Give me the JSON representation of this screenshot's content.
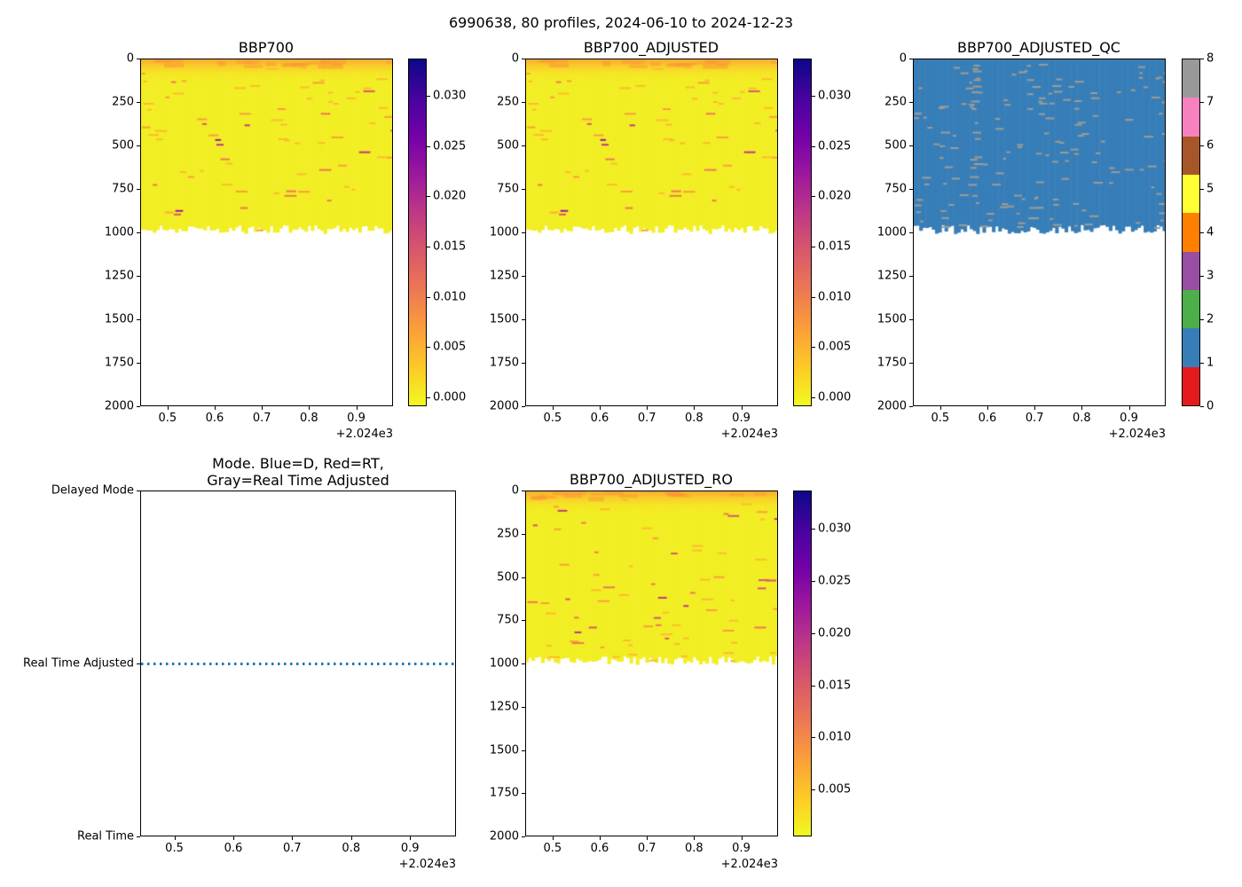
{
  "figure": {
    "title": "6990638, 80 profiles, 2024-06-10 to 2024-12-23",
    "background_color": "#ffffff"
  },
  "colors": {
    "heatmap_base": "#f2ee24",
    "surface_band": "#faa832",
    "qc_base": "#377eb8",
    "qc_fleck": "#9b9b96",
    "mode_line": "#1f77b4"
  },
  "chart_data": {
    "type": "multi-panel",
    "panels": [
      {
        "id": "bbp700",
        "type": "heatmap",
        "title": "BBP700",
        "x_ticks": [
          "0.5",
          "0.6",
          "0.7",
          "0.8",
          "0.9"
        ],
        "x_tick_values": [
          2024.5,
          2024.6,
          2024.7,
          2024.8,
          2024.9
        ],
        "x_offset": "+2.024e3",
        "x_range": [
          2024.442,
          2024.978
        ],
        "y_ticks": [
          "0",
          "250",
          "500",
          "750",
          "1000",
          "1250",
          "1500",
          "1750",
          "2000"
        ],
        "y_range": [
          0,
          2000
        ],
        "y_inverted": true,
        "n_profiles": 80,
        "data_depth_extent_m": [
          0,
          1000
        ],
        "typical_value": 0.0005,
        "surface_max_value": 0.004,
        "spike_max_value": 0.033,
        "colormap": "plasma_r",
        "colorbar": {
          "vmin": -0.0009,
          "vmax": 0.0337,
          "tick_values": [
            0,
            0.005,
            0.01,
            0.015,
            0.02,
            0.025,
            0.03
          ],
          "tick_labels": [
            "0.000",
            "0.005",
            "0.010",
            "0.015",
            "0.020",
            "0.025",
            "0.030"
          ]
        },
        "texture_seed": 11
      },
      {
        "id": "bbp700_adjusted",
        "type": "heatmap",
        "title": "BBP700_ADJUSTED",
        "x_ticks": [
          "0.5",
          "0.6",
          "0.7",
          "0.8",
          "0.9"
        ],
        "x_tick_values": [
          2024.5,
          2024.6,
          2024.7,
          2024.8,
          2024.9
        ],
        "x_offset": "+2.024e3",
        "x_range": [
          2024.442,
          2024.978
        ],
        "y_ticks": [
          "0",
          "250",
          "500",
          "750",
          "1000",
          "1250",
          "1500",
          "1750",
          "2000"
        ],
        "y_range": [
          0,
          2000
        ],
        "y_inverted": true,
        "n_profiles": 80,
        "data_depth_extent_m": [
          0,
          1000
        ],
        "typical_value": 0.0005,
        "surface_max_value": 0.004,
        "spike_max_value": 0.033,
        "colormap": "plasma_r",
        "colorbar": {
          "vmin": -0.0009,
          "vmax": 0.0337,
          "tick_values": [
            0,
            0.005,
            0.01,
            0.015,
            0.02,
            0.025,
            0.03
          ],
          "tick_labels": [
            "0.000",
            "0.005",
            "0.010",
            "0.015",
            "0.020",
            "0.025",
            "0.030"
          ]
        },
        "texture_seed": 11
      },
      {
        "id": "bbp700_adjusted_qc",
        "type": "heatmap",
        "title": "BBP700_ADJUSTED_QC",
        "x_ticks": [
          "0.5",
          "0.6",
          "0.7",
          "0.8",
          "0.9"
        ],
        "x_tick_values": [
          2024.5,
          2024.6,
          2024.7,
          2024.8,
          2024.9
        ],
        "x_offset": "+2.024e3",
        "x_range": [
          2024.442,
          2024.978
        ],
        "y_ticks": [
          "0",
          "250",
          "500",
          "750",
          "1000",
          "1250",
          "1500",
          "1750",
          "2000"
        ],
        "y_range": [
          0,
          2000
        ],
        "y_inverted": true,
        "n_profiles": 80,
        "data_depth_extent_m": [
          0,
          1000
        ],
        "dominant_flag": 1,
        "secondary_flag": 8,
        "colorbar": {
          "discrete": true,
          "tick_values": [
            0,
            1,
            2,
            3,
            4,
            5,
            6,
            7,
            8
          ],
          "tick_labels": [
            "0",
            "1",
            "2",
            "3",
            "4",
            "5",
            "6",
            "7",
            "8"
          ],
          "segment_colors_bottom_to_top": [
            "#e41a1c",
            "#377eb8",
            "#4daf4a",
            "#984ea3",
            "#ff7f00",
            "#ffff33",
            "#a65628",
            "#f781bf",
            "#999999"
          ]
        },
        "texture_seed": 23
      },
      {
        "id": "mode",
        "type": "line",
        "title": "Mode. Blue=D, Red=RT,\nGray=Real Time Adjusted",
        "x_ticks": [
          "0.5",
          "0.6",
          "0.7",
          "0.8",
          "0.9"
        ],
        "x_tick_values": [
          2024.5,
          2024.6,
          2024.7,
          2024.8,
          2024.9
        ],
        "x_offset": "+2.024e3",
        "x_range": [
          2024.442,
          2024.978
        ],
        "y_categories": [
          "Delayed Mode",
          "Real Time Adjusted",
          "Real Time"
        ],
        "series": [
          {
            "name": "mode",
            "color": "#1f77b4",
            "linestyle": "dotted",
            "constant_value": "Real Time Adjusted",
            "x_start": 2024.443,
            "x_end": 2024.978
          }
        ]
      },
      {
        "id": "bbp700_adjusted_ro",
        "type": "heatmap",
        "title": "BBP700_ADJUSTED_RO",
        "x_ticks": [
          "0.5",
          "0.6",
          "0.7",
          "0.8",
          "0.9"
        ],
        "x_tick_values": [
          2024.5,
          2024.6,
          2024.7,
          2024.8,
          2024.9
        ],
        "x_offset": "+2.024e3",
        "x_range": [
          2024.442,
          2024.978
        ],
        "y_ticks": [
          "0",
          "250",
          "500",
          "750",
          "1000",
          "1250",
          "1500",
          "1750",
          "2000"
        ],
        "y_range": [
          0,
          2000
        ],
        "y_inverted": true,
        "n_profiles": 80,
        "data_depth_extent_m": [
          0,
          1000
        ],
        "typical_value": 0.0005,
        "surface_max_value": 0.004,
        "spike_max_value": 0.033,
        "colormap": "plasma_r",
        "colorbar": {
          "vmin": 0.0005,
          "vmax": 0.0337,
          "tick_values": [
            0.005,
            0.01,
            0.015,
            0.02,
            0.025,
            0.03
          ],
          "tick_labels": [
            "0.005",
            "0.010",
            "0.015",
            "0.020",
            "0.025",
            "0.030"
          ]
        },
        "texture_seed": 17
      }
    ]
  }
}
